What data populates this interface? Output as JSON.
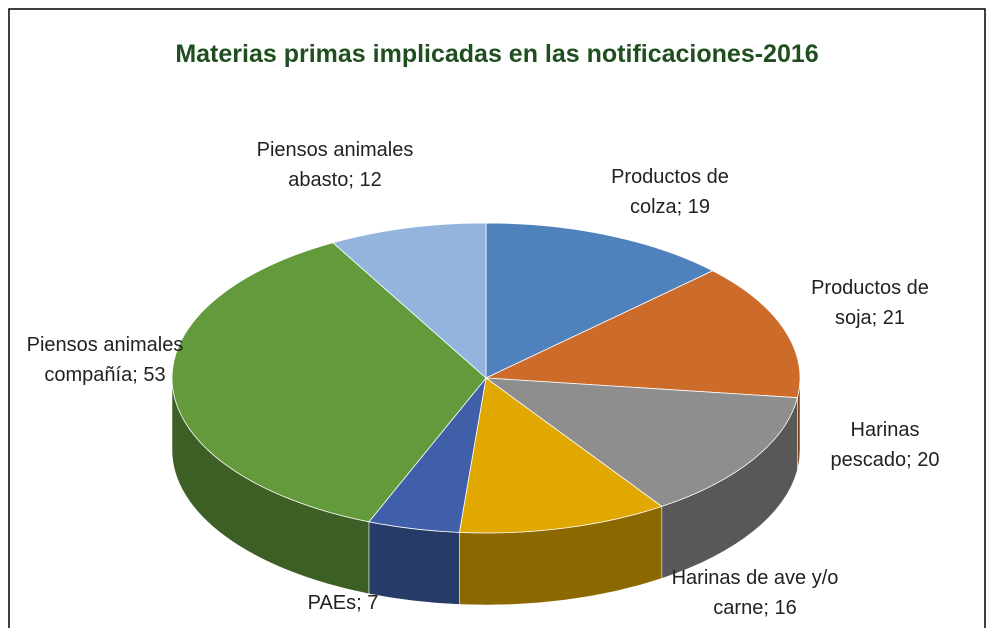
{
  "chart_data": {
    "type": "pie3d",
    "title": "Materias  primas implicadas en las notificaciones-2016",
    "values": [
      19,
      21,
      20,
      16,
      7,
      53,
      12
    ],
    "value_labels": [
      "Productos de colza; 19",
      "Productos de soja; 21",
      "Harinas pescado; 20",
      "Harinas de ave y/o carne; 16",
      "PAEs; 7",
      "Piensos animales compañía; 53",
      "Piensos animales abasto; 12"
    ],
    "colors": [
      "#4f81bd",
      "#cd6b2b",
      "#8e8e8e",
      "#e0a800",
      "#3f5fa8",
      "#639a3c",
      "#93b4dc"
    ]
  }
}
